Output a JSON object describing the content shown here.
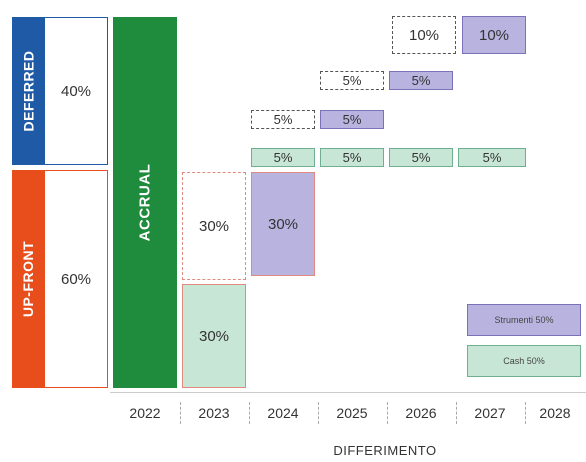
{
  "left_labels": {
    "deferred": "DEFERRED",
    "upfront": "UP-FRONT",
    "accrual": "ACCRUAL"
  },
  "left_values": {
    "deferred": "40%",
    "upfront": "60%"
  },
  "cells": {
    "y2023_dashed": "30%",
    "y2023_cash": "30%",
    "y2024_instr": "30%",
    "r5_2024": "5%",
    "r5_2025": "5%",
    "r5_2026": "5%",
    "r5_2027": "5%",
    "r4_dashed_2024": "5%",
    "r4_2025": "5%",
    "r3_dashed_2025": "5%",
    "r3_2026": "5%",
    "r2_dashed_2026": "10%",
    "r2_2027": "10%"
  },
  "legend": {
    "instruments": "Strumenti 50%",
    "cash": "Cash 50%"
  },
  "years": [
    "2022",
    "2023",
    "2024",
    "2025",
    "2026",
    "2027",
    "2028"
  ],
  "axis_title": "DIFFERIMENTO",
  "colors": {
    "deferred": "#1f5aa6",
    "upfront": "#e84e1b",
    "accrual": "#1e8c3c",
    "instruments": "#b9b3df",
    "cash": "#c8e6d6"
  }
}
